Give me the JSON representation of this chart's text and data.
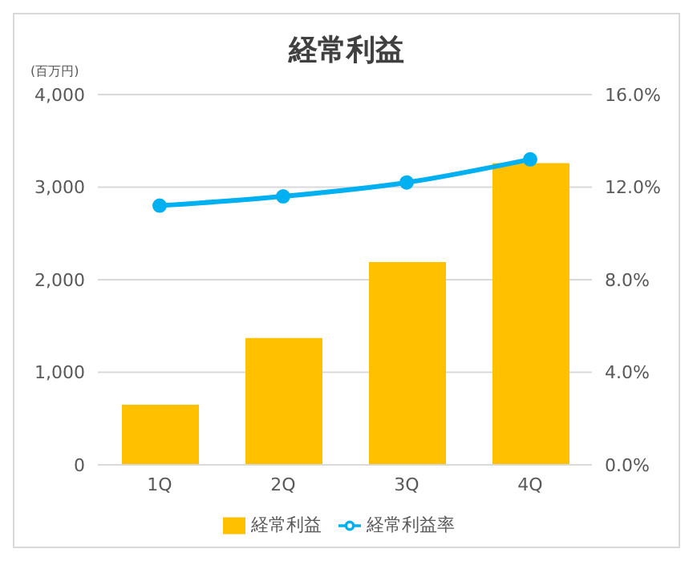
{
  "chart_data": {
    "type": "bar",
    "title": "経常利益",
    "ylabel": "(百万円)",
    "categories": [
      "1Q",
      "2Q",
      "3Q",
      "4Q"
    ],
    "series": [
      {
        "name": "経常利益",
        "color": "#ffc000",
        "values": [
          650,
          1370,
          2190,
          3260
        ]
      },
      {
        "name": "経常利益率",
        "type": "line",
        "color": "#00b0f0",
        "axis": "y2",
        "values": [
          11.2,
          11.6,
          12.2,
          13.2
        ]
      }
    ],
    "ylim": [
      0,
      4000
    ],
    "yticks": [
      {
        "value": 0,
        "label": "0"
      },
      {
        "value": 1000,
        "label": "1,000"
      },
      {
        "value": 2000,
        "label": "2,000"
      },
      {
        "value": 3000,
        "label": "3,000"
      },
      {
        "value": 4000,
        "label": "4,000"
      }
    ],
    "y2lim": [
      0,
      16
    ],
    "y2ticks": [
      {
        "value": 0,
        "label": "0.0%"
      },
      {
        "value": 4,
        "label": "4.0%"
      },
      {
        "value": 8,
        "label": "8.0%"
      },
      {
        "value": 12,
        "label": "12.0%"
      },
      {
        "value": 16,
        "label": "16.0%"
      }
    ],
    "grid": "y",
    "legend": "bottom",
    "marker": "circle",
    "line_style": "solid"
  }
}
